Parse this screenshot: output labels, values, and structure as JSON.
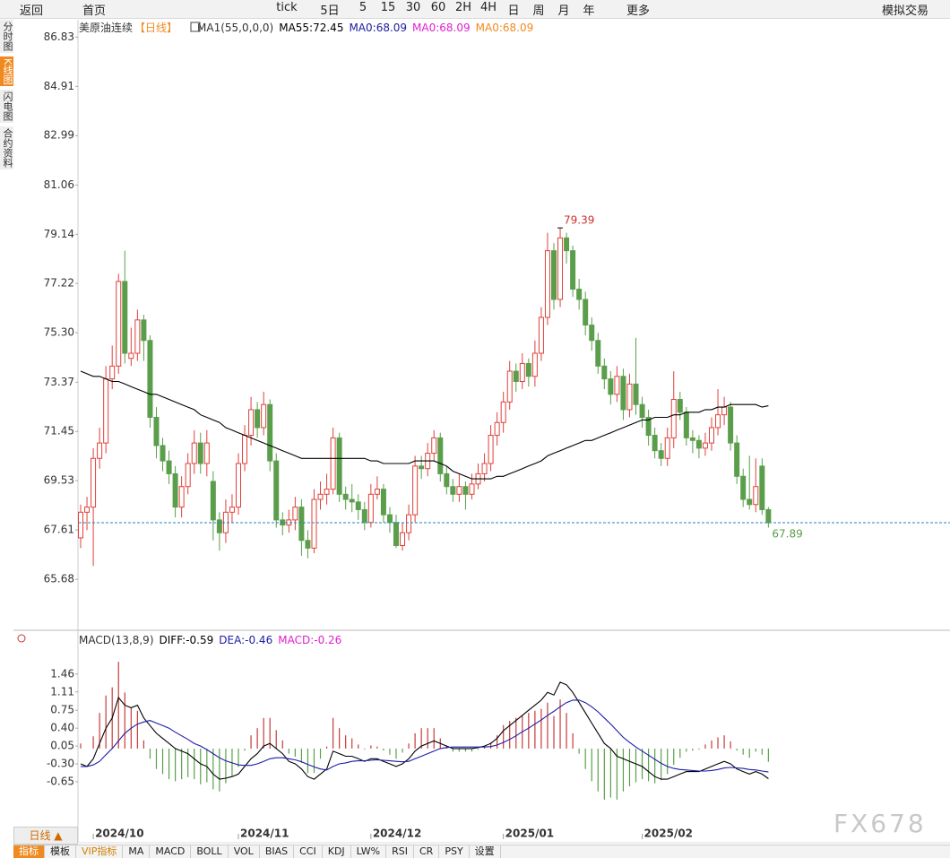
{
  "toolbar": {
    "items": [
      "返回",
      "首页",
      "tick",
      "5日",
      "5",
      "15",
      "30",
      "60",
      "2H",
      "4H",
      "日",
      "周",
      "月",
      "年",
      "更多",
      "模拟交易"
    ]
  },
  "sidebar": {
    "items": [
      "分时图",
      "K线图",
      "闪电图",
      "合约资料"
    ]
  },
  "bottom": {
    "period_button": "日线 ▲",
    "tabs": [
      "指标",
      "模板",
      "VIP指标",
      "MA",
      "MACD",
      "BOLL",
      "VOL",
      "BIAS",
      "CCI",
      "KDJ",
      "LW%",
      "RSI",
      "CR",
      "PSY",
      "设置"
    ]
  },
  "watermark": "FX678",
  "chart_data": [
    {
      "type": "candlestick",
      "title": "美原油连续",
      "period": "【日线】",
      "indicator": "MA1(55,0,0,0)",
      "up_color": "#e0403a",
      "down_color": "#5a9e4b",
      "last_line_color": "#2a7fc0",
      "ylim": [
        63.8,
        87.3
      ],
      "yticks": [
        86.83,
        84.91,
        82.99,
        81.06,
        79.14,
        77.22,
        {
          "value": 75.3,
          "label": "75.30"
        },
        73.37,
        71.45,
        69.53,
        67.61,
        65.68
      ],
      "grid": false,
      "open": [
        67.3,
        68.3,
        68.5,
        70.4,
        71.0,
        73.5,
        74.0,
        77.3,
        74.3,
        74.5,
        75.8,
        75.0,
        72.0,
        70.9,
        70.3,
        69.8,
        68.5,
        69.3,
        70.2,
        71.0,
        70.2,
        69.5,
        68.0,
        67.5,
        68.3,
        68.5,
        70.2,
        71.3,
        72.3,
        71.6,
        72.5,
        70.3,
        68.0,
        67.8,
        68.0,
        68.5,
        67.2,
        66.9,
        68.8,
        69.0,
        69.2,
        71.2,
        69.0,
        68.8,
        68.7,
        68.4,
        67.9,
        69.0,
        69.2,
        68.2,
        67.9,
        67.0,
        67.5,
        68.2,
        70.1,
        70.0,
        70.6,
        71.2,
        69.8,
        69.3,
        69.0,
        69.3,
        69.0,
        69.4,
        69.8,
        70.2,
        71.3,
        71.8,
        72.6,
        73.8,
        73.4,
        74.1,
        73.6,
        74.5,
        75.9,
        78.5,
        76.6,
        79.0,
        78.5,
        77.0,
        76.6,
        75.6,
        75.0,
        74.0,
        73.5,
        72.9,
        73.6,
        72.3,
        73.3,
        72.5,
        72.0,
        71.3,
        70.7,
        70.4,
        71.2,
        72.7,
        72.2,
        71.2,
        71.1,
        70.8,
        71.0,
        71.6,
        72.1,
        72.4,
        71.0,
        69.7,
        68.8,
        68.6,
        70.1,
        68.4
      ],
      "high": [
        68.6,
        68.9,
        70.8,
        71.6,
        74.0,
        74.8,
        77.6,
        78.5,
        75.5,
        76.2,
        76.0,
        75.2,
        72.4,
        71.2,
        70.7,
        70.1,
        69.7,
        70.6,
        71.5,
        71.4,
        71.5,
        69.9,
        68.3,
        68.8,
        69.0,
        70.6,
        71.7,
        72.8,
        72.6,
        73.0,
        72.7,
        70.6,
        68.3,
        68.4,
        68.9,
        68.8,
        67.6,
        69.2,
        69.5,
        69.8,
        71.6,
        71.4,
        69.3,
        69.4,
        69.0,
        68.7,
        69.4,
        69.7,
        69.4,
        68.5,
        68.2,
        67.9,
        68.6,
        70.5,
        70.5,
        71.0,
        71.5,
        71.4,
        70.1,
        69.6,
        69.8,
        69.5,
        69.8,
        70.2,
        70.6,
        71.7,
        72.2,
        73.0,
        74.2,
        74.1,
        74.5,
        74.3,
        75.0,
        76.3,
        79.2,
        78.8,
        79.39,
        79.2,
        78.7,
        77.4,
        76.9,
        75.9,
        75.3,
        74.3,
        73.8,
        74.0,
        73.9,
        73.7,
        75.1,
        72.8,
        72.3,
        71.6,
        71.0,
        71.6,
        73.8,
        73.0,
        72.4,
        71.5,
        71.3,
        71.4,
        72.0,
        73.1,
        72.8,
        72.6,
        71.3,
        70.0,
        70.5,
        70.4,
        70.4,
        68.5
      ],
      "low": [
        66.9,
        67.6,
        66.2,
        70.0,
        70.6,
        73.1,
        73.7,
        74.1,
        74.0,
        74.2,
        74.2,
        71.6,
        70.4,
        69.9,
        69.4,
        68.1,
        68.1,
        69.0,
        69.8,
        69.8,
        69.7,
        67.2,
        66.8,
        67.1,
        67.9,
        68.2,
        69.9,
        70.9,
        71.2,
        71.3,
        69.9,
        67.7,
        67.4,
        67.5,
        67.6,
        66.6,
        66.5,
        66.7,
        68.4,
        68.6,
        69.0,
        68.7,
        68.4,
        68.3,
        68.0,
        67.6,
        67.7,
        68.8,
        67.9,
        67.5,
        66.9,
        66.8,
        67.2,
        67.9,
        69.6,
        69.7,
        70.3,
        69.5,
        69.0,
        68.7,
        68.7,
        68.4,
        68.8,
        69.2,
        69.5,
        69.9,
        70.9,
        71.4,
        72.3,
        73.0,
        73.1,
        73.2,
        73.2,
        74.2,
        75.6,
        76.2,
        76.3,
        78.0,
        76.7,
        76.2,
        75.2,
        74.6,
        73.7,
        73.1,
        72.5,
        72.6,
        71.9,
        72.0,
        72.1,
        71.6,
        70.9,
        70.4,
        70.1,
        70.1,
        70.8,
        71.9,
        70.9,
        70.6,
        70.4,
        70.5,
        70.7,
        71.3,
        71.7,
        70.7,
        69.4,
        68.5,
        68.4,
        68.3,
        68.2,
        67.7
      ],
      "close": [
        68.3,
        68.5,
        70.4,
        71.0,
        73.5,
        74.0,
        77.3,
        74.5,
        74.5,
        75.8,
        75.0,
        72.0,
        70.9,
        70.3,
        69.8,
        68.5,
        69.3,
        70.2,
        71.0,
        70.2,
        71.0,
        68.0,
        67.5,
        68.3,
        68.5,
        70.2,
        71.3,
        72.3,
        71.6,
        72.5,
        70.3,
        68.0,
        67.8,
        68.0,
        68.5,
        67.2,
        66.9,
        68.8,
        69.0,
        69.2,
        71.2,
        69.0,
        68.8,
        68.7,
        68.4,
        67.9,
        69.0,
        69.2,
        68.2,
        67.9,
        67.0,
        67.5,
        68.2,
        70.1,
        70.0,
        70.6,
        71.2,
        69.8,
        69.3,
        69.0,
        69.3,
        69.0,
        69.4,
        69.8,
        70.2,
        71.3,
        71.8,
        72.6,
        73.8,
        73.4,
        74.1,
        73.6,
        74.5,
        75.9,
        78.5,
        76.6,
        79.0,
        78.5,
        77.0,
        76.6,
        75.6,
        75.0,
        74.0,
        73.5,
        72.9,
        73.6,
        72.3,
        73.3,
        72.5,
        72.0,
        71.3,
        70.7,
        70.4,
        71.2,
        72.7,
        72.2,
        71.2,
        71.1,
        70.8,
        71.0,
        71.6,
        72.1,
        72.4,
        71.0,
        69.7,
        68.8,
        68.6,
        69.3,
        68.4,
        67.89
      ],
      "series": [
        {
          "name": "MA55:",
          "color": "#000000",
          "values": [
            73.8,
            73.7,
            73.6,
            73.6,
            73.5,
            73.4,
            73.4,
            73.3,
            73.2,
            73.1,
            73.0,
            72.9,
            72.9,
            72.8,
            72.7,
            72.6,
            72.5,
            72.4,
            72.3,
            72.1,
            72.0,
            71.9,
            71.8,
            71.6,
            71.5,
            71.4,
            71.3,
            71.2,
            71.1,
            71.0,
            70.9,
            70.8,
            70.7,
            70.6,
            70.5,
            70.4,
            70.4,
            70.4,
            70.4,
            70.4,
            70.4,
            70.4,
            70.4,
            70.4,
            70.4,
            70.4,
            70.3,
            70.3,
            70.2,
            70.2,
            70.2,
            70.2,
            70.2,
            70.3,
            70.3,
            70.3,
            70.3,
            70.2,
            70.1,
            69.9,
            69.8,
            69.7,
            69.6,
            69.6,
            69.6,
            69.6,
            69.7,
            69.7,
            69.8,
            69.9,
            70.0,
            70.1,
            70.2,
            70.3,
            70.5,
            70.6,
            70.7,
            70.8,
            70.9,
            71.0,
            71.1,
            71.1,
            71.2,
            71.3,
            71.4,
            71.5,
            71.6,
            71.7,
            71.8,
            71.9,
            71.9,
            72.0,
            72.0,
            72.0,
            72.1,
            72.1,
            72.2,
            72.2,
            72.2,
            72.3,
            72.3,
            72.4,
            72.4,
            72.5,
            72.5,
            72.5,
            72.5,
            72.5,
            72.4,
            72.45
          ]
        }
      ],
      "extra_legend": [
        {
          "text": "MA0:68.09",
          "color": "#1c1c9c"
        },
        {
          "text": "MA0:68.09",
          "color": "#e020d0"
        },
        {
          "text": "MA0:68.09",
          "color": "#f08a20"
        }
      ]
    },
    {
      "type": "macd",
      "title": "MACD(13,8,9)",
      "up_color": "#c83a3a",
      "down_color": "#5aa04a",
      "ylim": [
        -1.67,
        2.23
      ],
      "yticks": [
        1.46,
        1.11,
        0.75,
        {
          "value": 0.4,
          "label": "0.40"
        },
        0.05,
        {
          "value": -0.3,
          "label": "-0.30"
        },
        -0.65
      ],
      "xticks": [
        {
          "value": 2,
          "label": "2024/10"
        },
        {
          "value": 25,
          "label": "2024/11"
        },
        {
          "value": 46,
          "label": "2024/12"
        },
        {
          "value": 67,
          "label": "2025/01"
        },
        {
          "value": 89,
          "label": "2025/02"
        }
      ],
      "series": [
        {
          "name": "DIFF:",
          "color": "#000000",
          "values": [
            -0.3,
            -0.35,
            -0.2,
            0.1,
            0.4,
            0.6,
            1.0,
            0.85,
            0.8,
            0.85,
            0.6,
            0.45,
            0.3,
            0.2,
            0.1,
            0.0,
            -0.05,
            -0.1,
            -0.2,
            -0.3,
            -0.35,
            -0.5,
            -0.6,
            -0.58,
            -0.55,
            -0.5,
            -0.35,
            -0.2,
            -0.1,
            0.05,
            0.1,
            0.0,
            -0.1,
            -0.25,
            -0.3,
            -0.4,
            -0.55,
            -0.6,
            -0.5,
            -0.4,
            -0.05,
            -0.1,
            -0.15,
            -0.15,
            -0.2,
            -0.25,
            -0.2,
            -0.2,
            -0.25,
            -0.3,
            -0.35,
            -0.3,
            -0.2,
            -0.05,
            0.05,
            0.1,
            0.15,
            0.1,
            0.05,
            0.0,
            0.0,
            0.0,
            0.0,
            0.02,
            0.05,
            0.1,
            0.2,
            0.35,
            0.45,
            0.55,
            0.65,
            0.75,
            0.85,
            0.95,
            1.1,
            1.05,
            1.3,
            1.25,
            1.1,
            0.9,
            0.7,
            0.5,
            0.3,
            0.1,
            0.0,
            -0.15,
            -0.2,
            -0.25,
            -0.3,
            -0.35,
            -0.45,
            -0.55,
            -0.6,
            -0.6,
            -0.55,
            -0.5,
            -0.45,
            -0.45,
            -0.45,
            -0.4,
            -0.35,
            -0.3,
            -0.25,
            -0.3,
            -0.4,
            -0.45,
            -0.5,
            -0.45,
            -0.5,
            -0.59
          ]
        },
        {
          "name": "DEA:",
          "color": "#1c1ca8",
          "values": [
            -0.35,
            -0.35,
            -0.32,
            -0.25,
            -0.12,
            0.0,
            0.15,
            0.3,
            0.4,
            0.48,
            0.52,
            0.55,
            0.5,
            0.45,
            0.4,
            0.32,
            0.25,
            0.18,
            0.1,
            0.05,
            -0.02,
            -0.1,
            -0.18,
            -0.24,
            -0.28,
            -0.32,
            -0.33,
            -0.33,
            -0.3,
            -0.25,
            -0.2,
            -0.18,
            -0.18,
            -0.2,
            -0.22,
            -0.26,
            -0.31,
            -0.36,
            -0.4,
            -0.42,
            -0.35,
            -0.3,
            -0.28,
            -0.25,
            -0.24,
            -0.24,
            -0.23,
            -0.22,
            -0.23,
            -0.24,
            -0.25,
            -0.26,
            -0.25,
            -0.2,
            -0.15,
            -0.1,
            -0.05,
            0.0,
            0.02,
            0.03,
            0.03,
            0.03,
            0.03,
            0.03,
            0.03,
            0.04,
            0.07,
            0.12,
            0.18,
            0.25,
            0.33,
            0.4,
            0.48,
            0.56,
            0.65,
            0.73,
            0.82,
            0.9,
            0.95,
            0.95,
            0.9,
            0.82,
            0.72,
            0.6,
            0.48,
            0.35,
            0.22,
            0.12,
            0.03,
            -0.05,
            -0.13,
            -0.21,
            -0.29,
            -0.35,
            -0.39,
            -0.41,
            -0.42,
            -0.43,
            -0.44,
            -0.44,
            -0.43,
            -0.41,
            -0.38,
            -0.37,
            -0.38,
            -0.39,
            -0.41,
            -0.42,
            -0.44,
            -0.46
          ]
        },
        {
          "name": "MACD:",
          "color": "#e020d0",
          "histogram": true,
          "values": [
            0.1,
            0.0,
            0.24,
            0.7,
            1.04,
            1.2,
            1.7,
            1.1,
            0.8,
            0.74,
            0.16,
            -0.2,
            -0.4,
            -0.5,
            -0.6,
            -0.64,
            -0.6,
            -0.56,
            -0.6,
            -0.7,
            -0.66,
            -0.8,
            -0.84,
            -0.68,
            -0.54,
            -0.36,
            -0.04,
            0.26,
            0.4,
            0.6,
            0.6,
            0.36,
            0.16,
            -0.1,
            -0.16,
            -0.28,
            -0.48,
            -0.48,
            -0.2,
            0.04,
            0.6,
            0.4,
            0.26,
            0.2,
            0.08,
            -0.02,
            0.06,
            0.04,
            -0.04,
            -0.12,
            -0.2,
            -0.08,
            0.1,
            0.3,
            0.4,
            0.4,
            0.4,
            0.2,
            0.06,
            -0.06,
            -0.06,
            -0.06,
            -0.06,
            -0.02,
            0.04,
            0.12,
            0.26,
            0.46,
            0.54,
            0.6,
            0.64,
            0.7,
            0.74,
            0.78,
            0.9,
            0.64,
            0.96,
            0.7,
            0.3,
            -0.1,
            -0.4,
            -0.64,
            -0.84,
            -1.0,
            -0.96,
            -1.0,
            -0.84,
            -0.74,
            -0.66,
            -0.6,
            -0.64,
            -0.68,
            -0.62,
            -0.5,
            -0.32,
            -0.18,
            -0.06,
            -0.04,
            -0.02,
            0.08,
            0.16,
            0.22,
            0.26,
            0.14,
            -0.04,
            -0.12,
            -0.18,
            -0.06,
            -0.12,
            -0.26
          ]
        }
      ]
    }
  ]
}
